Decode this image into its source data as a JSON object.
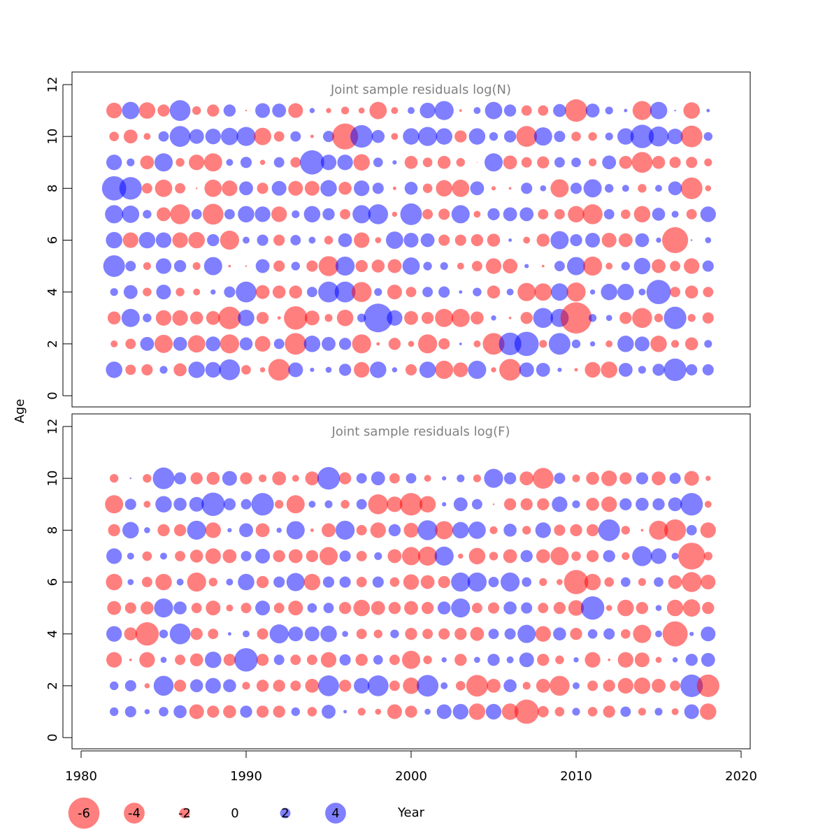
{
  "chart_data": [
    {
      "type": "scatter",
      "title": "Joint sample residuals log(N)",
      "xlabel": "",
      "ylabel": "Age",
      "xlim": [
        1980,
        2020
      ],
      "ylim": [
        0,
        12
      ],
      "yticks": [
        "0",
        "2",
        "4",
        "6",
        "8",
        "10",
        "12"
      ],
      "bubble_encoding": "radius ~ |residual|; red = negative, blue = positive",
      "years": [
        1982,
        1983,
        1984,
        1985,
        1986,
        1987,
        1988,
        1989,
        1990,
        1991,
        1992,
        1993,
        1994,
        1995,
        1996,
        1997,
        1998,
        1999,
        2000,
        2001,
        2002,
        2003,
        2004,
        2005,
        2006,
        2007,
        2008,
        2009,
        2010,
        2011,
        2012,
        2013,
        2014,
        2015,
        2016,
        2017,
        2018
      ],
      "rows": [
        {
          "age": 11,
          "residuals": [
            -1.8,
            2.0,
            -1.9,
            -1.4,
            2.4,
            -1.0,
            -1.4,
            1.4,
            -0.2,
            1.7,
            1.6,
            -1.7,
            0.6,
            -0.6,
            -0.9,
            -0.7,
            -2.0,
            -0.8,
            0.8,
            1.8,
            2.2,
            -0.3,
            0.8,
            2.0,
            1.4,
            -1.2,
            -1.2,
            1.5,
            -2.6,
            1.6,
            0.9,
            0.4,
            -2.2,
            2.0,
            0.2,
            -1.9,
            0.4
          ]
        },
        {
          "age": 10,
          "residuals": [
            -1.1,
            -1.6,
            -0.8,
            1.2,
            2.4,
            1.7,
            1.8,
            2.0,
            2.2,
            -2.0,
            -1.2,
            1.2,
            -0.4,
            1.3,
            -3.0,
            2.6,
            1.5,
            -0.8,
            1.9,
            2.2,
            1.9,
            -1.4,
            1.9,
            1.0,
            1.4,
            -2.4,
            2.1,
            1.3,
            -1.1,
            -1.0,
            0.9,
            1.9,
            2.7,
            2.3,
            1.8,
            -2.5,
            1.0
          ]
        },
        {
          "age": 9,
          "residuals": [
            1.8,
            0.9,
            -1.6,
            2.1,
            -1.0,
            -1.8,
            -2.1,
            0.8,
            1.3,
            -0.6,
            1.2,
            -1.2,
            2.8,
            1.8,
            1.8,
            -1.9,
            1.1,
            0.5,
            -1.5,
            -1.1,
            -1.5,
            -1.0,
            -0.1,
            2.1,
            -1.6,
            -1.2,
            -1.4,
            1.2,
            1.1,
            -0.9,
            1.6,
            -1.5,
            -2.4,
            -1.5,
            -1.3,
            -1.3,
            -0.9
          ]
        },
        {
          "age": 8,
          "residuals": [
            2.8,
            2.6,
            -1.2,
            -2.0,
            -1.2,
            -0.2,
            -2.0,
            -1.8,
            1.6,
            -1.3,
            1.7,
            -1.7,
            -1.7,
            1.9,
            -1.5,
            1.8,
            1.3,
            -0.4,
            1.5,
            -1.1,
            -1.9,
            -2.0,
            1.6,
            -0.5,
            -0.3,
            1.3,
            0.7,
            -2.1,
            1.3,
            2.1,
            1.0,
            0.8,
            -1.0,
            0.8,
            1.6,
            -2.5,
            -0.7
          ]
        },
        {
          "age": 7,
          "residuals": [
            2.1,
            2.0,
            1.0,
            -1.6,
            -2.3,
            1.2,
            -2.4,
            1.2,
            1.9,
            1.8,
            -1.8,
            0.9,
            1.9,
            1.4,
            -1.2,
            2.1,
            2.3,
            -0.6,
            2.5,
            -1.2,
            -1.3,
            2.1,
            -0.8,
            1.4,
            1.6,
            1.6,
            -1.2,
            -1.2,
            -1.9,
            -2.3,
            1.2,
            -1.1,
            -1.9,
            1.5,
            0.8,
            -1.2,
            1.8
          ]
        },
        {
          "age": 6,
          "residuals": [
            1.9,
            -1.8,
            1.9,
            1.8,
            -1.8,
            -1.9,
            1.4,
            -2.2,
            0.8,
            1.3,
            -1.3,
            1.2,
            0.8,
            -1.0,
            1.6,
            -1.8,
            -0.7,
            2.0,
            1.7,
            1.6,
            -1.3,
            -1.3,
            -1.4,
            -1.5,
            0.4,
            -0.8,
            -1.5,
            2.1,
            1.4,
            1.7,
            -1.7,
            -1.6,
            1.6,
            0.6,
            -3.0,
            0.2,
            0.7
          ]
        },
        {
          "age": 5,
          "residuals": [
            2.5,
            1.2,
            -0.9,
            1.8,
            1.4,
            -0.9,
            2.1,
            -0.3,
            -0.2,
            1.6,
            -1.3,
            1.0,
            -1.3,
            -2.3,
            2.2,
            -1.4,
            -1.5,
            -1.6,
            2.0,
            1.0,
            0.9,
            -0.8,
            -1.2,
            -1.8,
            -1.7,
            0.5,
            -0.3,
            1.2,
            2.1,
            -2.2,
            -0.8,
            1.0,
            1.9,
            -1.6,
            -1.2,
            -1.8,
            1.3
          ]
        },
        {
          "age": 4,
          "residuals": [
            0.9,
            1.6,
            -1.0,
            1.7,
            -1.0,
            -0.8,
            0.6,
            1.3,
            2.4,
            -1.6,
            -1.5,
            -1.5,
            1.2,
            2.4,
            2.4,
            -2.3,
            0.9,
            -1.7,
            -1.2,
            1.2,
            1.3,
            0.4,
            1.0,
            -1.5,
            0.8,
            -2.1,
            -2.0,
            2.0,
            -2.2,
            0.6,
            1.9,
            1.9,
            0.8,
            2.8,
            -1.2,
            -1.5,
            -1.2
          ]
        },
        {
          "age": 3,
          "residuals": [
            -1.5,
            2.1,
            1.0,
            -1.8,
            -1.8,
            -1.5,
            -1.6,
            -2.6,
            1.9,
            -1.4,
            -0.4,
            -2.7,
            -1.7,
            -0.9,
            -1.9,
            1.0,
            3.3,
            1.8,
            -1.6,
            -1.4,
            -2.1,
            -2.1,
            -1.5,
            0.6,
            -0.3,
            -1.4,
            2.3,
            2.1,
            -3.6,
            0.9,
            0.7,
            -1.4,
            -2.3,
            -1.0,
            2.6,
            -0.9,
            -1.3
          ]
        },
        {
          "age": 2,
          "residuals": [
            -0.8,
            -1.2,
            1.6,
            -2.1,
            1.6,
            -2.0,
            1.7,
            -2.2,
            1.5,
            -1.8,
            1.2,
            -2.5,
            1.9,
            1.6,
            1.4,
            -2.2,
            -0.4,
            -1.4,
            -0.7,
            -2.2,
            -1.3,
            0.3,
            -0.8,
            -2.5,
            2.6,
            2.8,
            -0.9,
            2.5,
            1.0,
            0.6,
            -0.8,
            1.9,
            1.7,
            -1.9,
            -0.9,
            -1.5,
            0.9
          ]
        },
        {
          "age": 1,
          "residuals": [
            1.9,
            -1.2,
            -1.3,
            0.9,
            -1.5,
            1.9,
            1.8,
            2.4,
            -1.1,
            -0.6,
            -2.5,
            1.7,
            0.5,
            0.7,
            1.4,
            -1.8,
            1.9,
            0.6,
            -1.3,
            1.9,
            -2.1,
            -1.7,
            2.1,
            -0.6,
            -2.5,
            1.7,
            1.6,
            0.5,
            -0.4,
            -1.8,
            -1.9,
            1.6,
            0.9,
            1.4,
            2.6,
            1.3,
            1.3
          ]
        }
      ]
    },
    {
      "type": "scatter",
      "title": "Joint sample residuals log(F)",
      "xlabel": "Year",
      "ylabel": "Age",
      "xlim": [
        1980,
        2020
      ],
      "ylim": [
        0,
        12
      ],
      "xticks": [
        "1980",
        "1990",
        "2000",
        "2010",
        "2020"
      ],
      "yticks": [
        "0",
        "2",
        "4",
        "6",
        "8",
        "10",
        "12"
      ],
      "bubble_encoding": "radius ~ |residual|; red = negative, blue = positive",
      "years": [
        1982,
        1983,
        1984,
        1985,
        1986,
        1987,
        1988,
        1989,
        1990,
        1991,
        1992,
        1993,
        1994,
        1995,
        1996,
        1997,
        1998,
        1999,
        2000,
        2001,
        2002,
        2003,
        2004,
        2005,
        2006,
        2007,
        2008,
        2009,
        2010,
        2011,
        2012,
        2013,
        2014,
        2015,
        2016,
        2017,
        2018
      ],
      "rows": [
        {
          "age": 10,
          "residuals": [
            -1.0,
            0.2,
            -1.0,
            2.5,
            1.4,
            -1.4,
            -1.5,
            1.7,
            -1.4,
            -0.9,
            -1.6,
            -0.8,
            -1.6,
            2.6,
            -1.4,
            1.2,
            1.6,
            -1.2,
            1.2,
            -0.8,
            0.5,
            0.9,
            -0.9,
            2.2,
            1.4,
            -1.6,
            -2.4,
            1.3,
            -0.9,
            -1.5,
            -1.8,
            -1.4,
            1.4,
            -1.6,
            1.3,
            -1.7,
            -0.6
          ]
        },
        {
          "age": 9,
          "residuals": [
            -2.1,
            1.3,
            -0.8,
            1.9,
            1.5,
            1.7,
            2.7,
            1.4,
            1.2,
            2.6,
            -1.0,
            -2.1,
            0.8,
            0.9,
            -1.0,
            1.2,
            -2.3,
            -1.8,
            -2.6,
            -1.9,
            0.5,
            1.6,
            1.2,
            -0.2,
            -1.4,
            -1.4,
            -1.4,
            1.8,
            0.9,
            -1.5,
            -1.8,
            1.4,
            1.5,
            1.4,
            1.6,
            2.6,
            -0.8
          ]
        },
        {
          "age": 8,
          "residuals": [
            -1.4,
            1.9,
            0.7,
            -1.4,
            -1.4,
            2.2,
            -1.8,
            0.5,
            1.6,
            -1.6,
            0.6,
            2.1,
            -0.4,
            -1.6,
            2.2,
            -1.2,
            -1.8,
            1.4,
            -1.7,
            2.3,
            -2.1,
            1.9,
            2.0,
            -0.9,
            1.5,
            -1.0,
            1.8,
            -1.3,
            -1.4,
            -1.4,
            2.5,
            -1.0,
            -0.3,
            -2.2,
            -2.5,
            1.2,
            -1.8
          ]
        },
        {
          "age": 7,
          "residuals": [
            1.8,
            0.8,
            -1.1,
            0.8,
            -1.2,
            -1.5,
            -1.8,
            -1.6,
            1.2,
            1.7,
            -1.4,
            -1.6,
            -1.4,
            -2.1,
            1.3,
            -1.2,
            0.9,
            -1.6,
            -2.1,
            -2.2,
            2.2,
            -0.6,
            -1.9,
            -1.0,
            -1.6,
            1.4,
            -1.6,
            -2.1,
            -1.1,
            -1.4,
            1.4,
            -0.9,
            2.3,
            1.8,
            0.8,
            -3.1,
            -1.0
          ]
        },
        {
          "age": 6,
          "residuals": [
            -1.9,
            0.7,
            -1.2,
            -1.9,
            0.8,
            -2.2,
            -1.0,
            0.8,
            1.9,
            -1.4,
            1.3,
            2.1,
            -1.9,
            1.3,
            1.3,
            -1.2,
            1.3,
            -1.1,
            -1.8,
            -1.6,
            -1.4,
            2.2,
            2.2,
            1.2,
            2.2,
            1.1,
            -0.9,
            -0.7,
            -2.8,
            -1.9,
            -1.1,
            1.1,
            -0.9,
            1.1,
            -1.6,
            -2.3,
            -1.7
          ]
        },
        {
          "age": 5,
          "residuals": [
            -1.6,
            -1.3,
            -1.5,
            2.2,
            1.5,
            -1.2,
            -1.7,
            -0.8,
            -1.2,
            1.7,
            -1.2,
            -1.7,
            1.1,
            1.2,
            -1.4,
            -1.9,
            -1.6,
            -1.4,
            -1.6,
            -1.4,
            1.5,
            2.2,
            -1.2,
            -1.3,
            1.5,
            1.3,
            -1.2,
            -1.4,
            -1.8,
            2.7,
            -0.7,
            -1.9,
            -1.4,
            0.7,
            -1.9,
            -2.0,
            -1.4
          ]
        },
        {
          "age": 4,
          "residuals": [
            1.8,
            -1.5,
            -2.7,
            1.0,
            2.4,
            -1.4,
            -1.2,
            0.4,
            0.8,
            -1.3,
            2.2,
            1.7,
            1.7,
            1.9,
            0.7,
            -1.2,
            -1.0,
            1.0,
            -1.4,
            -1.2,
            -1.3,
            -1.4,
            -1.6,
            1.2,
            1.3,
            2.1,
            -1.8,
            1.5,
            -1.4,
            1.1,
            1.3,
            -1.1,
            -2.1,
            0.8,
            -2.9,
            0.5,
            1.7
          ]
        },
        {
          "age": 3,
          "residuals": [
            -1.8,
            -0.3,
            -1.8,
            0.7,
            -1.2,
            -1.5,
            1.9,
            -1.4,
            2.7,
            -1.4,
            1.2,
            -1.2,
            -1.2,
            -1.8,
            1.3,
            -1.4,
            1.1,
            -1.2,
            -2.1,
            -1.0,
            0.6,
            -1.4,
            0.7,
            1.4,
            0.8,
            1.7,
            -1.4,
            -1.0,
            0.6,
            -1.8,
            -0.3,
            -1.8,
            -1.7,
            -0.7,
            0.6,
            1.4,
            1.6
          ]
        },
        {
          "age": 2,
          "residuals": [
            1.0,
            1.3,
            -0.6,
            2.3,
            -1.4,
            1.5,
            1.8,
            1.5,
            -0.9,
            -1.4,
            -1.4,
            -1.2,
            -1.6,
            2.4,
            -1.4,
            1.8,
            2.4,
            -1.2,
            -1.9,
            2.5,
            0.8,
            -1.1,
            -2.5,
            -1.6,
            1.5,
            -0.9,
            -1.6,
            -2.3,
            0.8,
            -1.2,
            -1.4,
            -1.8,
            -1.9,
            -1.6,
            -1.2,
            2.6,
            -2.6
          ]
        },
        {
          "age": 1,
          "residuals": [
            1.0,
            1.3,
            0.6,
            1.1,
            1.5,
            -1.7,
            -1.4,
            -1.5,
            1.4,
            -1.4,
            -1.4,
            1.0,
            -1.1,
            1.6,
            0.4,
            -0.9,
            -0.7,
            -1.7,
            -1.4,
            0.7,
            1.7,
            1.8,
            -1.9,
            1.8,
            -1.9,
            -2.8,
            -1.3,
            -1.1,
            0.9,
            -1.1,
            -1.4,
            1.2,
            -0.9,
            0.9,
            -0.8,
            1.7,
            -1.9
          ]
        }
      ]
    }
  ],
  "legend": {
    "items": [
      {
        "label": "-6",
        "value": -6
      },
      {
        "label": "-4",
        "value": -4
      },
      {
        "label": "-2",
        "value": -2
      },
      {
        "label": "0",
        "value": 0
      },
      {
        "label": "2",
        "value": 2
      },
      {
        "label": "4",
        "value": 4
      }
    ],
    "xaxis_title": "Year"
  },
  "colors": {
    "negative": "#FF0000",
    "positive": "#0000FF",
    "title_gray": "#808080",
    "axis": "#000000"
  }
}
